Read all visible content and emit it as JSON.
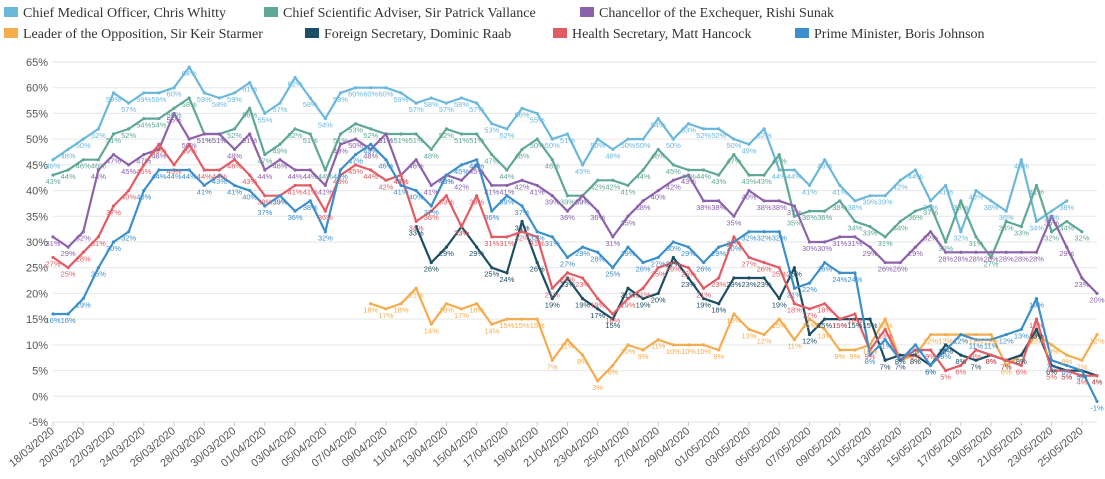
{
  "chart_data": {
    "type": "line",
    "title": "",
    "xlabel": "",
    "ylabel": "",
    "y_suffix": "%",
    "ylim": [
      -5,
      65
    ],
    "yticks": [
      -5,
      0,
      5,
      10,
      15,
      20,
      25,
      30,
      35,
      40,
      45,
      50,
      55,
      60,
      65
    ],
    "grid": true,
    "legend_position": "top-left",
    "x": [
      "18/03/2020",
      "19/03/2020",
      "20/03/2020",
      "21/03/2020",
      "22/03/2020",
      "23/03/2020",
      "24/03/2020",
      "25/03/2020",
      "26/03/2020",
      "27/03/2020",
      "28/03/2020",
      "29/03/2020",
      "30/03/2020",
      "31/03/2020",
      "01/04/2020",
      "02/04/2020",
      "03/04/2020",
      "04/04/2020",
      "05/04/2020",
      "06/04/2020",
      "07/04/2020",
      "08/04/2020",
      "09/04/2020",
      "10/04/2020",
      "11/04/2020",
      "12/04/2020",
      "13/04/2020",
      "14/04/2020",
      "15/04/2020",
      "16/04/2020",
      "17/04/2020",
      "18/04/2020",
      "19/04/2020",
      "20/04/2020",
      "21/04/2020",
      "22/04/2020",
      "23/04/2020",
      "24/04/2020",
      "25/04/2020",
      "26/04/2020",
      "27/04/2020",
      "28/04/2020",
      "29/04/2020",
      "30/04/2020",
      "01/05/2020",
      "02/05/2020",
      "03/05/2020",
      "04/05/2020",
      "05/05/2020",
      "06/05/2020",
      "07/05/2020",
      "08/05/2020",
      "09/05/2020",
      "10/05/2020",
      "11/05/2020",
      "12/05/2020",
      "13/05/2020",
      "14/05/2020",
      "15/05/2020",
      "16/05/2020",
      "17/05/2020",
      "18/05/2020",
      "19/05/2020",
      "20/05/2020",
      "21/05/2020",
      "22/05/2020",
      "23/05/2020",
      "24/05/2020",
      "25/05/2020",
      "26/05/2020"
    ],
    "x_tick_labels": [
      "18/03/2020",
      "20/03/2020",
      "22/03/2020",
      "24/03/2020",
      "26/03/2020",
      "28/03/2020",
      "30/03/2020",
      "01/04/2020",
      "03/04/2020",
      "05/04/2020",
      "07/04/2020",
      "09/04/2020",
      "11/04/2020",
      "13/04/2020",
      "15/04/2020",
      "17/04/2020",
      "19/04/2020",
      "21/04/2020",
      "23/04/2020",
      "25/04/2020",
      "27/04/2020",
      "29/04/2020",
      "01/05/2020",
      "03/05/2020",
      "05/05/2020",
      "07/05/2020",
      "09/05/2020",
      "11/05/2020",
      "13/05/2020",
      "15/05/2020",
      "17/05/2020",
      "19/05/2020",
      "21/05/2020",
      "23/05/2020",
      "25/05/2020"
    ],
    "series": [
      {
        "name": "Chief Medical Officer, Chris Whitty",
        "color": "#6cb8dc",
        "values": [
          46,
          48,
          50,
          52,
          59,
          57,
          59,
          59,
          60,
          64,
          59,
          58,
          59,
          61,
          55,
          57,
          62,
          58,
          54,
          59,
          60,
          60,
          60,
          59,
          57,
          58,
          57,
          58,
          57,
          53,
          52,
          56,
          55,
          50,
          51,
          45,
          50,
          48,
          50,
          50,
          54,
          50,
          53,
          52,
          52,
          50,
          49,
          52,
          44,
          44,
          41,
          46,
          41,
          38,
          39,
          39,
          42,
          44,
          38,
          41,
          32,
          40,
          38,
          36,
          46,
          34,
          36,
          38,
          null,
          null
        ]
      },
      {
        "name": "Chief Scientific Adviser, Sir Patrick Vallance",
        "color": "#5fa796",
        "values": [
          43,
          44,
          46,
          46,
          51,
          52,
          54,
          54,
          56,
          58,
          51,
          51,
          52,
          56,
          47,
          49,
          52,
          51,
          44,
          51,
          53,
          52,
          51,
          51,
          51,
          48,
          52,
          51,
          51,
          47,
          44,
          48,
          50,
          46,
          39,
          39,
          42,
          42,
          41,
          44,
          48,
          45,
          44,
          44,
          43,
          47,
          43,
          43,
          47,
          35,
          36,
          36,
          38,
          34,
          33,
          31,
          34,
          36,
          37,
          30,
          38,
          31,
          27,
          34,
          33,
          41,
          32,
          34,
          32,
          null
        ]
      },
      {
        "name": "Chancellor of the Exchequer, Rishi Sunak",
        "color": "#8c62ac",
        "values": [
          31,
          29,
          32,
          44,
          47,
          45,
          47,
          48,
          55,
          50,
          51,
          51,
          48,
          51,
          44,
          46,
          44,
          44,
          41,
          49,
          50,
          48,
          51,
          43,
          46,
          41,
          43,
          42,
          45,
          41,
          41,
          42,
          41,
          39,
          36,
          39,
          36,
          31,
          35,
          38,
          40,
          42,
          43,
          38,
          38,
          35,
          40,
          38,
          38,
          37,
          30,
          30,
          31,
          31,
          29,
          26,
          26,
          29,
          32,
          28,
          28,
          28,
          28,
          28,
          28,
          28,
          35,
          29,
          23,
          20
        ]
      },
      {
        "name": "Leader of the Opposition, Sir Keir Starmer",
        "color": "#f5ac4e",
        "values": [
          null,
          null,
          null,
          null,
          null,
          null,
          null,
          null,
          null,
          null,
          null,
          null,
          null,
          null,
          null,
          null,
          null,
          null,
          null,
          null,
          null,
          18,
          17,
          18,
          21,
          14,
          18,
          17,
          18,
          14,
          15,
          15,
          15,
          7,
          11,
          8,
          3,
          6,
          10,
          9,
          11,
          10,
          10,
          10,
          9,
          16,
          13,
          12,
          15,
          11,
          15,
          13,
          9,
          9,
          10,
          15,
          7,
          8,
          12,
          12,
          12,
          12,
          12,
          6,
          8,
          12,
          10,
          8,
          7,
          12
        ]
      },
      {
        "name": "Foreign Secretary, Dominic Raab",
        "color": "#1d4e63",
        "values": [
          null,
          null,
          null,
          null,
          null,
          null,
          null,
          null,
          null,
          null,
          null,
          null,
          null,
          null,
          null,
          null,
          null,
          null,
          null,
          null,
          null,
          null,
          null,
          null,
          33,
          26,
          29,
          33,
          29,
          25,
          24,
          34,
          26,
          19,
          23,
          19,
          17,
          15,
          21,
          19,
          20,
          27,
          23,
          19,
          18,
          23,
          23,
          23,
          19,
          25,
          12,
          15,
          15,
          15,
          15,
          7,
          8,
          8,
          6,
          10,
          8,
          7,
          8,
          7,
          8,
          13,
          6,
          5,
          5,
          4
        ]
      },
      {
        "name": "Health Secretary, Matt Hancock",
        "color": "#e15c64",
        "values": [
          27,
          25,
          28,
          31,
          37,
          40,
          45,
          49,
          45,
          49,
          44,
          44,
          46,
          43,
          39,
          39,
          41,
          41,
          36,
          43,
          45,
          44,
          42,
          43,
          34,
          36,
          39,
          33,
          39,
          31,
          31,
          32,
          31,
          21,
          24,
          23,
          19,
          16,
          19,
          21,
          25,
          26,
          25,
          21,
          23,
          31,
          27,
          26,
          25,
          18,
          17,
          18,
          15,
          16,
          9,
          13,
          7,
          9,
          9,
          5,
          6,
          9,
          8,
          7,
          6,
          15,
          5,
          5,
          4,
          4
        ]
      },
      {
        "name": "Prime Minister, Boris Johnson",
        "color": "#3d8fcb",
        "values": [
          16,
          16,
          19,
          25,
          30,
          32,
          40,
          44,
          44,
          44,
          41,
          43,
          41,
          40,
          37,
          39,
          36,
          38,
          32,
          44,
          47,
          49,
          46,
          41,
          40,
          37,
          43,
          45,
          46,
          36,
          39,
          37,
          32,
          31,
          27,
          29,
          28,
          25,
          29,
          26,
          27,
          30,
          29,
          26,
          29,
          30,
          32,
          32,
          32,
          21,
          22,
          26,
          24,
          24,
          8,
          11,
          7,
          10,
          6,
          9,
          12,
          11,
          11,
          12,
          13,
          19,
          7,
          6,
          5,
          -1
        ]
      }
    ]
  }
}
